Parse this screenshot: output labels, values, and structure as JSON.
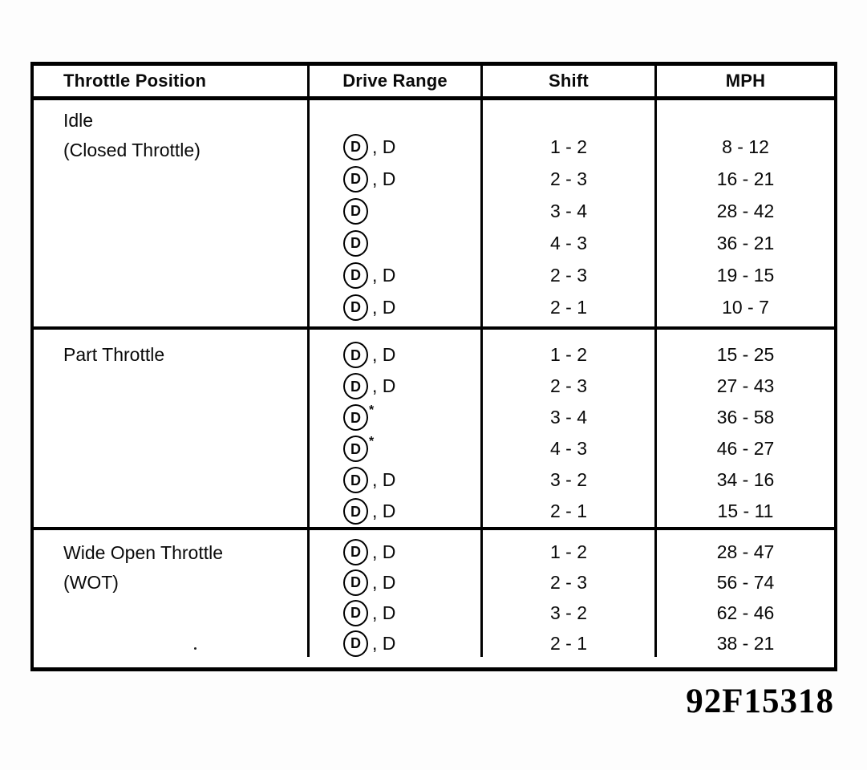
{
  "document": {
    "figure_id": "92F15318"
  },
  "table": {
    "headers": [
      "Throttle Position",
      "Drive Range",
      "Shift",
      "MPH"
    ],
    "sections": [
      {
        "label_lines": [
          "Idle",
          "(Closed Throttle)"
        ],
        "rows": [
          {
            "circled": "D",
            "asterisk": "",
            "suffix": ", D",
            "shift": "1 - 2",
            "mph": "8 - 12"
          },
          {
            "circled": "D",
            "asterisk": "",
            "suffix": ", D",
            "shift": "2 - 3",
            "mph": "16 - 21"
          },
          {
            "circled": "D",
            "asterisk": "",
            "suffix": "",
            "shift": "3 - 4",
            "mph": "28 - 42"
          },
          {
            "circled": "D",
            "asterisk": "",
            "suffix": "",
            "shift": "4 - 3",
            "mph": "36 - 21"
          },
          {
            "circled": "D",
            "asterisk": "",
            "suffix": ", D",
            "shift": "2 - 3",
            "mph": "19 - 15"
          },
          {
            "circled": "D",
            "asterisk": "",
            "suffix": ", D",
            "shift": "2 - 1",
            "mph": "10 - 7"
          }
        ]
      },
      {
        "label_lines": [
          "Part Throttle"
        ],
        "rows": [
          {
            "circled": "D",
            "asterisk": "",
            "suffix": ", D",
            "shift": "1 - 2",
            "mph": "15 - 25"
          },
          {
            "circled": "D",
            "asterisk": "",
            "suffix": ", D",
            "shift": "2 - 3",
            "mph": "27 - 43"
          },
          {
            "circled": "D",
            "asterisk": "*",
            "suffix": "",
            "shift": "3 - 4",
            "mph": "36 - 58"
          },
          {
            "circled": "D",
            "asterisk": "*",
            "suffix": "",
            "shift": "4 - 3",
            "mph": "46 - 27"
          },
          {
            "circled": "D",
            "asterisk": "",
            "suffix": ", D",
            "shift": "3 - 2",
            "mph": "34 - 16"
          },
          {
            "circled": "D",
            "asterisk": "",
            "suffix": ", D",
            "shift": "2 - 1",
            "mph": "15 - 11"
          }
        ]
      },
      {
        "label_lines": [
          "Wide Open Throttle",
          "(WOT)"
        ],
        "rows": [
          {
            "circled": "D",
            "asterisk": "",
            "suffix": ", D",
            "shift": "1 - 2",
            "mph": "28 - 47"
          },
          {
            "circled": "D",
            "asterisk": "",
            "suffix": ", D",
            "shift": "2 - 3",
            "mph": "56 - 74"
          },
          {
            "circled": "D",
            "asterisk": "",
            "suffix": ", D",
            "shift": "3 - 2",
            "mph": "62 - 46"
          },
          {
            "circled": "D",
            "asterisk": "",
            "suffix": ", D",
            "shift": "2 - 1",
            "mph": "38 - 21"
          }
        ]
      }
    ]
  }
}
